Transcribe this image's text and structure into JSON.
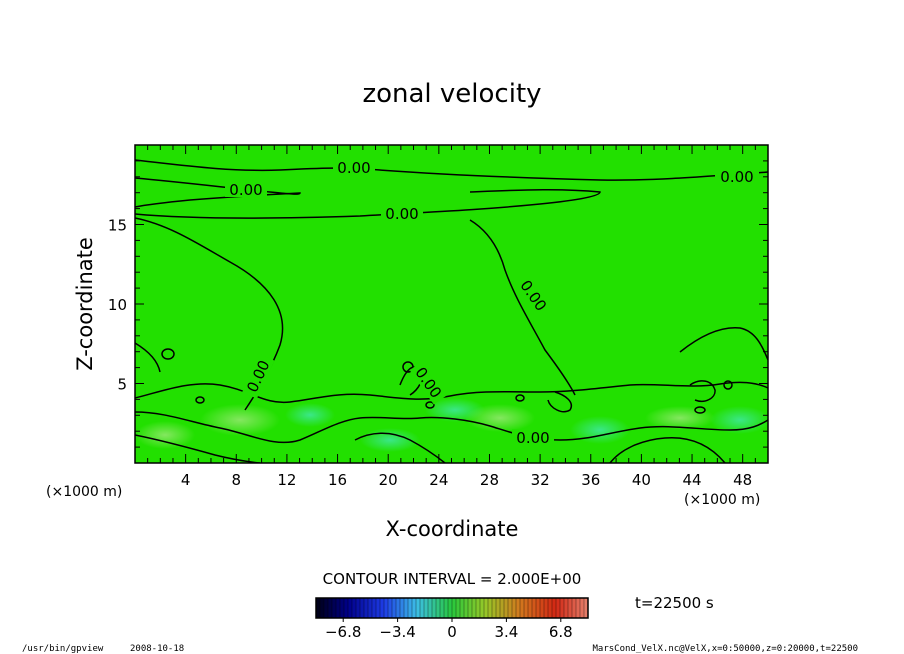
{
  "chart_data": {
    "type": "contour",
    "title": "zonal velocity",
    "xlabel": "X-coordinate",
    "ylabel": "Z-coordinate",
    "x_unit_left": "(×1000 m)",
    "x_unit_right": "(×1000 m)",
    "xlim": [
      0,
      50
    ],
    "ylim": [
      0,
      20
    ],
    "x_ticks": [
      4,
      8,
      12,
      16,
      20,
      24,
      28,
      32,
      36,
      40,
      44,
      48
    ],
    "y_ticks": [
      5,
      10,
      15
    ],
    "contour_level_labels": [
      "0.00",
      "0.00",
      "0.00",
      "0.00",
      "0.00",
      "0.00",
      "0.00",
      "0.00"
    ],
    "contour_interval_text": "CONTOUR INTERVAL = 2.000E+00",
    "colorbar": {
      "min": -8.5,
      "max": 8.5,
      "tick_labels": [
        "−6.8",
        "−3.4",
        "0",
        "3.4",
        "6.8"
      ],
      "tick_values": [
        -6.8,
        -3.4,
        0,
        3.4,
        6.8
      ]
    },
    "time_label": "t=22500 s",
    "colors": {
      "field": "#22e000",
      "contour": "#000000",
      "negative": "#0000c8",
      "positive": "#d0301a"
    }
  },
  "footer": {
    "program": "/usr/bin/gpview",
    "date": "2008-10-18",
    "source": "MarsCond_VelX.nc@VelX,x=0:50000,z=0:20000,t=22500"
  }
}
